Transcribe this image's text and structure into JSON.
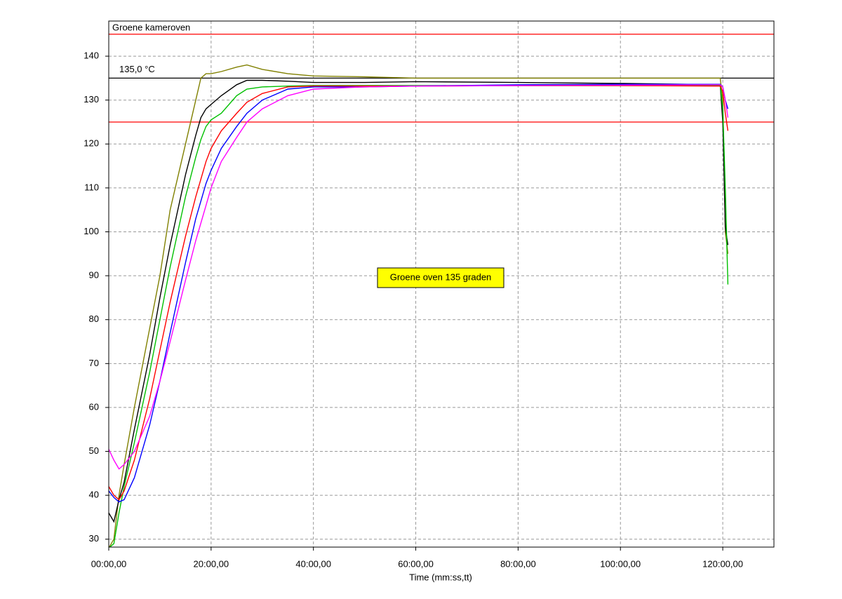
{
  "chart_data": {
    "type": "line",
    "x_label": "Time (mm:ss,tt)",
    "annotations": [
      "Groene kameroven",
      "135,0 °C",
      "Groene oven 135 graden"
    ],
    "x": [
      0,
      1,
      2,
      3,
      5,
      8,
      10,
      12,
      15,
      17,
      18,
      19,
      20,
      22,
      25,
      27,
      30,
      35,
      40,
      50,
      60,
      80,
      100,
      119.5,
      120,
      120.5,
      121
    ],
    "series": [
      {
        "color": "#808000",
        "values": [
          28,
          30,
          40,
          47,
          60,
          78,
          90,
          105,
          120,
          130,
          135,
          136,
          136,
          136.5,
          137.5,
          138,
          137,
          136,
          135.5,
          135.3,
          135,
          135,
          135,
          135,
          130,
          100,
          95
        ]
      },
      {
        "color": "#000000",
        "values": [
          36,
          34,
          39,
          43,
          55,
          72,
          85,
          97,
          113,
          122,
          126,
          128,
          129,
          131,
          133.5,
          134.5,
          134.5,
          134.3,
          134,
          134,
          134.2,
          134,
          133.8,
          133.5,
          125,
          101,
          97
        ]
      },
      {
        "color": "#00c000",
        "values": [
          28,
          29,
          36,
          42,
          52,
          68,
          80,
          92,
          108,
          117,
          121,
          124,
          125.5,
          127,
          131,
          132.5,
          133,
          133.2,
          133.3,
          133.3,
          133.3,
          133.3,
          133.3,
          133.3,
          128,
          110,
          88
        ]
      },
      {
        "color": "#ff0000",
        "values": [
          42,
          40,
          39,
          41,
          48,
          62,
          73,
          84,
          99,
          108,
          112,
          116,
          119,
          123,
          127,
          129.5,
          131.5,
          133,
          133.2,
          133.2,
          133.2,
          133.3,
          133.3,
          133.2,
          132,
          127,
          123
        ]
      },
      {
        "color": "#0000ff",
        "values": [
          41,
          39.5,
          38.5,
          39,
          44,
          56,
          66,
          77,
          93,
          103,
          107,
          111,
          114,
          119,
          124,
          127,
          130,
          132.5,
          133,
          133,
          133.2,
          133.5,
          133.6,
          133.6,
          133,
          130,
          128
        ]
      },
      {
        "color": "#ff00ff",
        "values": [
          50.5,
          48,
          46,
          47,
          50,
          58,
          66,
          75,
          89,
          98,
          102,
          106,
          110,
          116,
          121.5,
          125,
          128,
          131,
          132.5,
          133,
          133.2,
          133.3,
          133.4,
          133.5,
          133,
          130,
          126
        ]
      }
    ],
    "hlines": [
      {
        "value": 145,
        "color": "#ff0000"
      },
      {
        "value": 125,
        "color": "#ff0000"
      },
      {
        "value": 135,
        "color": "#000000"
      }
    ],
    "xlim": [
      0,
      130
    ],
    "ylim": [
      28.2,
      148
    ],
    "xticks": [
      {
        "value": 0,
        "label": "00:00,00"
      },
      {
        "value": 20,
        "label": "20:00,00"
      },
      {
        "value": 40,
        "label": "40:00,00"
      },
      {
        "value": 60,
        "label": "60:00,00"
      },
      {
        "value": 80,
        "label": "80:00,00"
      },
      {
        "value": 100,
        "label": "100:00,00"
      },
      {
        "value": 120,
        "label": "120:00,00"
      }
    ],
    "yticks": [
      30,
      40,
      50,
      60,
      70,
      80,
      90,
      100,
      110,
      120,
      130,
      140
    ],
    "grid": true
  }
}
